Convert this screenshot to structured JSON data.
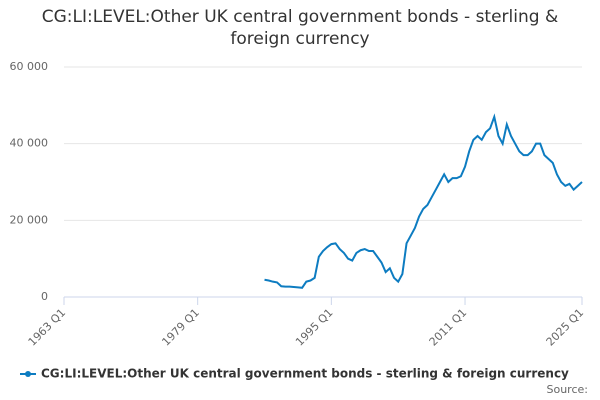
{
  "chart_data": {
    "type": "line",
    "title": "CG:LI:LEVEL:Other UK central government bonds - sterling & foreign currency",
    "source": "Source:",
    "x": [
      "1987 Q1",
      "1987 Q3",
      "1988 Q1",
      "1988 Q3",
      "1989 Q1",
      "1989 Q3",
      "1990 Q1",
      "1990 Q3",
      "1991 Q1",
      "1991 Q3",
      "1992 Q1",
      "1992 Q3",
      "1993 Q1",
      "1993 Q3",
      "1994 Q1",
      "1994 Q3",
      "1995 Q1",
      "1995 Q3",
      "1996 Q1",
      "1996 Q3",
      "1997 Q1",
      "1997 Q3",
      "1998 Q1",
      "1998 Q3",
      "1999 Q1",
      "1999 Q3",
      "2000 Q1",
      "2000 Q3",
      "2001 Q1",
      "2001 Q3",
      "2002 Q1",
      "2002 Q3",
      "2003 Q1",
      "2003 Q3",
      "2004 Q1",
      "2004 Q3",
      "2005 Q1",
      "2005 Q3",
      "2006 Q1",
      "2006 Q3",
      "2007 Q1",
      "2007 Q3",
      "2008 Q1",
      "2008 Q3",
      "2009 Q1",
      "2009 Q3",
      "2010 Q1",
      "2010 Q3",
      "2011 Q1",
      "2011 Q3",
      "2012 Q1",
      "2012 Q3",
      "2013 Q1",
      "2013 Q3",
      "2014 Q1",
      "2014 Q3",
      "2015 Q1",
      "2015 Q3",
      "2016 Q1",
      "2016 Q3",
      "2017 Q1",
      "2017 Q3",
      "2018 Q1",
      "2018 Q3",
      "2019 Q1",
      "2019 Q3",
      "2020 Q1",
      "2020 Q3",
      "2021 Q1",
      "2021 Q3",
      "2022 Q1",
      "2022 Q3",
      "2023 Q1",
      "2023 Q3",
      "2024 Q1",
      "2024 Q3",
      "2025 Q1"
    ],
    "series": [
      {
        "name": "CG:LI:LEVEL:Other UK central government bonds - sterling & foreign currency",
        "color": "#0d7cc1",
        "values": [
          4500,
          4300,
          4000,
          3800,
          2800,
          2700,
          2700,
          2600,
          2500,
          2400,
          4000,
          4300,
          5000,
          10500,
          12000,
          13000,
          13800,
          14000,
          12500,
          11500,
          10000,
          9500,
          11500,
          12200,
          12500,
          12000,
          12000,
          10500,
          9000,
          6500,
          7500,
          5000,
          4000,
          6000,
          14000,
          16000,
          18000,
          21000,
          23000,
          24000,
          26000,
          28000,
          30000,
          32000,
          30000,
          31000,
          31000,
          31500,
          34000,
          38000,
          41000,
          42000,
          41000,
          43000,
          44000,
          47000,
          42000,
          40000,
          45000,
          42000,
          40000,
          38000,
          37000,
          37000,
          38000,
          40000,
          40000,
          37000,
          36000,
          35000,
          32000,
          30000,
          29000,
          29500,
          28000,
          29000,
          30000
        ]
      }
    ],
    "xlim": [
      "1963 Q1",
      "2025 Q1"
    ],
    "xticks": [
      "1963 Q1",
      "1979 Q1",
      "1995 Q1",
      "2011 Q1",
      "2025 Q1"
    ],
    "ylim": [
      0,
      60000
    ],
    "yticks": [
      0,
      {
        "value": 20000,
        "label": "20 000"
      },
      {
        "value": 40000,
        "label": "40 000"
      },
      {
        "value": 60000,
        "label": "60 000"
      }
    ],
    "grid": true,
    "legend": "bottom"
  }
}
